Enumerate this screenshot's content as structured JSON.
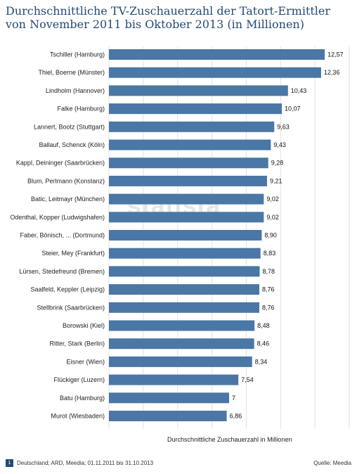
{
  "title": "Durchschnittliche TV-Zuschauerzahl der Tatort-Ermittler von November 2011 bis Oktober 2013 (in Millionen)",
  "watermark": "statista",
  "footer": {
    "badge": "1",
    "source_left": "Deutschland; ARD, Meedia; 01.11.2011 bis 31.10.2013",
    "source_right": "Quelle: Meedia"
  },
  "chart_data": {
    "type": "bar",
    "orientation": "horizontal",
    "title": "Durchschnittliche TV-Zuschauerzahl der Tatort-Ermittler von November 2011 bis Oktober 2013 (in Millionen)",
    "xlabel": "Durchschnittliche Zuschauerzahl in Millionen",
    "xlim": [
      0,
      14
    ],
    "grid": true,
    "bar_color": "#4a77a5",
    "categories": [
      "Tschiller (Hamburg)",
      "Thiel, Boerne (Münster)",
      "Lindholm (Hannover)",
      "Falke (Hamburg)",
      "Lannert, Bootz (Stuttgart)",
      "Ballauf, Schenck (Köln)",
      "Kappl, Deininger (Saarbrücken)",
      "Blum, Perlmann (Konstanz)",
      "Batic, Leitmayr (München)",
      "Odenthal, Kopper (Ludwigshafen)",
      "Faber, Bönisch, ... (Dortmund)",
      "Steier, Mey (Frankfurt)",
      "Lürsen, Stedefreund (Bremen)",
      "Saalfeld, Keppler (Leipzig)",
      "Stellbrink (Saarbrücken)",
      "Borowski (Kiel)",
      "Ritter, Stark (Berlin)",
      "Eisner (Wien)",
      "Flückiger (Luzern)",
      "Batu (Hamburg)",
      "Murot (Wiesbaden)"
    ],
    "values": [
      12.57,
      12.36,
      10.43,
      10.07,
      9.63,
      9.43,
      9.28,
      9.21,
      9.02,
      9.02,
      8.9,
      8.83,
      8.78,
      8.76,
      8.76,
      8.48,
      8.46,
      8.34,
      7.54,
      7,
      6.86
    ],
    "value_labels": [
      "12,57",
      "12,36",
      "10,43",
      "10,07",
      "9,63",
      "9,43",
      "9,28",
      "9,21",
      "9,02",
      "9,02",
      "8,90",
      "8,83",
      "8,78",
      "8,76",
      "8,76",
      "8,48",
      "8,46",
      "8,34",
      "7,54",
      "7",
      "6,86"
    ]
  }
}
